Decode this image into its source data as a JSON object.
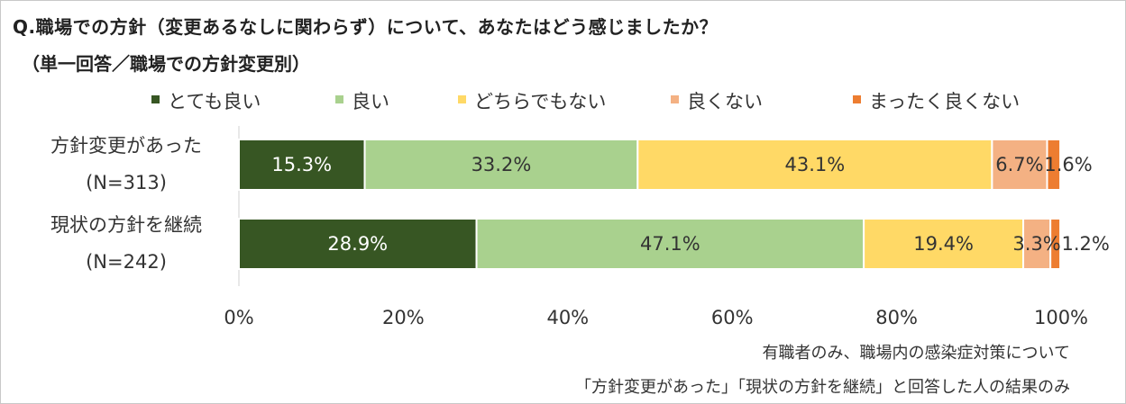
{
  "title": "Q.職場での方針（変更あるなしに関わらず）について、あなたはどう感じましたか？",
  "subtitle": "（単一回答／職場での方針変更別）",
  "chart_data": {
    "type": "bar",
    "orientation": "horizontal",
    "stacked": true,
    "percent": true,
    "categories": [
      {
        "label": "方針変更があった",
        "n": "(N=313)"
      },
      {
        "label": "現状の方針を継続",
        "n": "(N=242)"
      }
    ],
    "series": [
      {
        "name": "とても良い",
        "color": "#375623",
        "label_color": "#ffffff",
        "values": [
          15.3,
          28.9
        ],
        "labels": [
          "15.3%",
          "28.9%"
        ]
      },
      {
        "name": "良い",
        "color": "#a9d18e",
        "label_color": "#333333",
        "values": [
          33.2,
          47.1
        ],
        "labels": [
          "33.2%",
          "47.1%"
        ]
      },
      {
        "name": "どちらでもない",
        "color": "#ffd966",
        "label_color": "#333333",
        "values": [
          43.1,
          19.4
        ],
        "labels": [
          "43.1%",
          "19.4%"
        ]
      },
      {
        "name": "良くない",
        "color": "#f4b183",
        "label_color": "#333333",
        "values": [
          6.7,
          3.3
        ],
        "labels": [
          "6.7%",
          "3.3%"
        ]
      },
      {
        "name": "まったく良くない",
        "color": "#ed7d31",
        "label_color": "#333333",
        "values": [
          1.6,
          1.2
        ],
        "labels": [
          "1.6%",
          "1.2%"
        ]
      }
    ],
    "xlim": [
      0,
      100
    ],
    "xticks": [
      "0%",
      "20%",
      "40%",
      "60%",
      "80%",
      "100%"
    ],
    "legend": "top",
    "grid": false
  },
  "notes": [
    "有職者のみ、職場内の感染症対策について",
    "「方針変更があった」「現状の方針を継続」と回答した人の結果のみ"
  ]
}
